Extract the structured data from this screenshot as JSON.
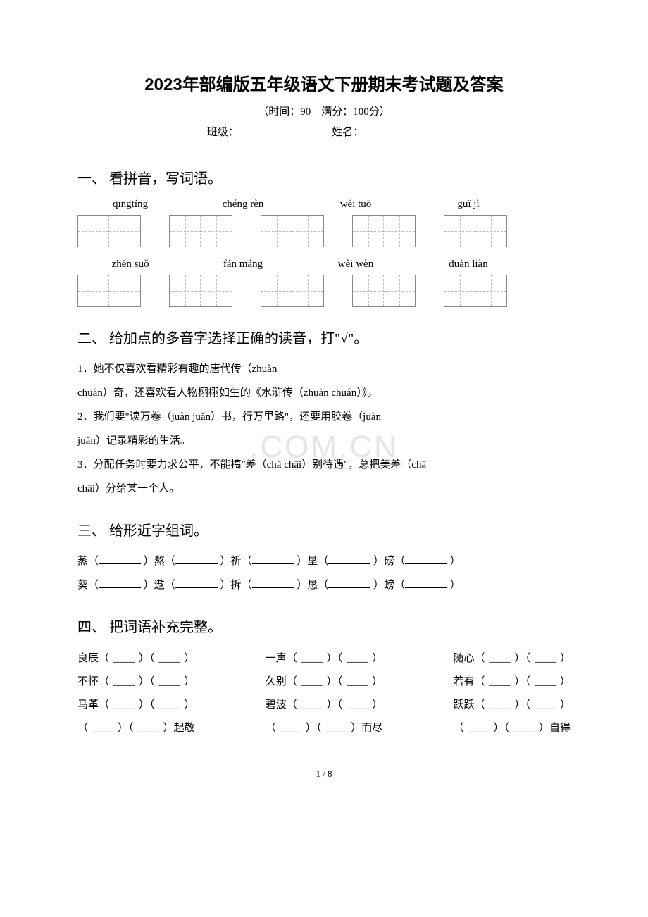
{
  "header": {
    "title": "2023年部编版五年级语文下册期末考试题及答案",
    "time_score": "（时间：90　满分：100分）",
    "class_label": "班级：",
    "name_label": "姓名："
  },
  "section1": {
    "title": "一、 看拼音，写词语。",
    "row1": [
      "qīngtíng",
      "chéng rèn",
      "wěi tuō",
      "guǐ jì"
    ],
    "row2": [
      "zhěn suǒ",
      "fán máng",
      "wèi wèn",
      "duàn liàn"
    ]
  },
  "section2": {
    "title": "二、 给加点的多音字选择正确的读音，打\"√\"。",
    "q1a": "1．她不仅喜欢看精彩有趣的唐代传（zhuàn",
    "q1b": "chuán）奇，还喜欢看人物栩栩如生的《水浒传（zhuàn chuán）》。",
    "q2a": "2．我们要\"读万卷（juàn juǎn）书，行万里路\"，还要用胶卷（juàn",
    "q2b": "juǎn）记录精彩的生活。",
    "q3a": "3．分配任务时要力求公平，不能搞\"差（chā chāi）别待遇\"，总把美差（chā",
    "q3b": "chāi）分给某一个人。"
  },
  "section3": {
    "title": "三、 给形近字组词。",
    "row1": {
      "c1": "蒸（",
      "c2": "）熬（",
      "c3": "）祈（",
      "c4": "）垦（",
      "c5": "）磅（",
      "c6": "）"
    },
    "row2": {
      "c1": "葵（",
      "c2": "）遨（",
      "c3": "）拆（",
      "c4": "）恳（",
      "c5": "）螃（",
      "c6": "）"
    }
  },
  "section4": {
    "title": "四、 把词语补充完整。",
    "row1": {
      "a": "良辰（",
      "b": "）（",
      "c": "）",
      "d": "一声（",
      "e": "）（",
      "f": "）",
      "g": "随心（",
      "h": "）（",
      "i": "）"
    },
    "row2": {
      "a": "不怀（",
      "b": "）（",
      "c": "）",
      "d": "久别（",
      "e": "）（",
      "f": "）",
      "g": "若有（",
      "h": "）（",
      "i": "）"
    },
    "row3": {
      "a": "马革（",
      "b": "）（",
      "c": "）",
      "d": "碧波（",
      "e": "）（",
      "f": "）",
      "g": "跃跃（",
      "h": "）（",
      "i": "）"
    },
    "row4": {
      "a": "（",
      "b": "）（",
      "c": "）起敬",
      "d": "（",
      "e": "）（",
      "f": "）而尽",
      "g": "（",
      "h": "）（",
      "i": "）自得"
    }
  },
  "footer": {
    "page": "1 / 8"
  },
  "watermark": ".COM.CN"
}
